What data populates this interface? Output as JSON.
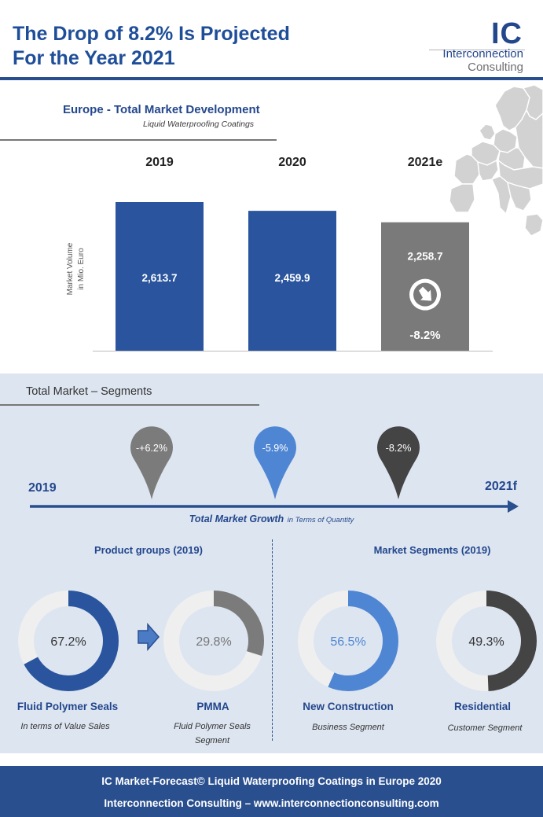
{
  "header": {
    "title_line1": "The Drop of 8.2% Is Projected",
    "title_line2": "For the Year 2021"
  },
  "logo": {
    "mark": "IC",
    "line1": "Interconnection",
    "line2": "Consulting",
    "map_icon": "europe-map-icon"
  },
  "colors": {
    "brand_blue": "#23478d",
    "bar_blue": "#2a559e",
    "bar_grey": "#7a7a7a",
    "panel_bg": "#dde5f0",
    "pin_grey": "#7b7b7b",
    "pin_blue": "#4f86d3",
    "pin_dark": "#444444"
  },
  "chart_data": {
    "type": "bar",
    "title": "Europe - Total Market Development",
    "subtitle": "Liquid Waterproofing Coatings",
    "ylabel_line1": "Market Volume",
    "ylabel_line2": "in Mio. Euro",
    "categories": [
      "2019",
      "2020",
      "2021e"
    ],
    "values": [
      2613.7,
      2459.9,
      2258.7
    ],
    "value_labels": [
      "2,613.7",
      "2,459.9",
      "2,258.7"
    ],
    "change_label": "-8.2%",
    "change_icon": "down-arrow-icon",
    "ylim": [
      0,
      2613.7
    ],
    "grid": false,
    "bar_colors": [
      "#2a559e",
      "#2a559e",
      "#7a7a7a"
    ]
  },
  "segments": {
    "title": "Total Market – Segments",
    "timeline": {
      "start_label": "2019",
      "end_label": "2021f",
      "pins": [
        {
          "label": "-+6.2%",
          "color": "#7b7b7b"
        },
        {
          "label": "-5.9%",
          "color": "#4f86d3"
        },
        {
          "label": "-8.2%",
          "color": "#444444"
        }
      ],
      "caption_bold": "Total Market Growth",
      "caption_small": "in Terms of Quantity"
    },
    "product_groups": {
      "heading": "Product groups  (2019)",
      "donuts": [
        {
          "pct_label": "67.2%",
          "value": 67.2,
          "name": "Fluid Polymer Seals",
          "sub": "In terms of Value Sales",
          "color": "#2a559e"
        },
        {
          "pct_label": "29.8%",
          "value": 29.8,
          "name": "PMMA",
          "sub_line1": "Fluid Polymer Seals",
          "sub_line2": "Segment",
          "color": "#7b7b7b"
        }
      ]
    },
    "market_segments": {
      "heading": "Market Segments (2019)",
      "donuts": [
        {
          "pct_label": "56.5%",
          "value": 56.5,
          "name": "New Construction",
          "sub": "Business Segment",
          "color": "#4f86d3"
        },
        {
          "pct_label": "49.3%",
          "value": 49.3,
          "name": "Residential",
          "sub": "Customer Segment",
          "color": "#444444"
        }
      ]
    }
  },
  "footer": {
    "line1": "IC Market-Forecast© Liquid Waterproofing Coatings in Europe 2020",
    "line2": "Interconnection Consulting –  www.interconnectionconsulting.com"
  }
}
